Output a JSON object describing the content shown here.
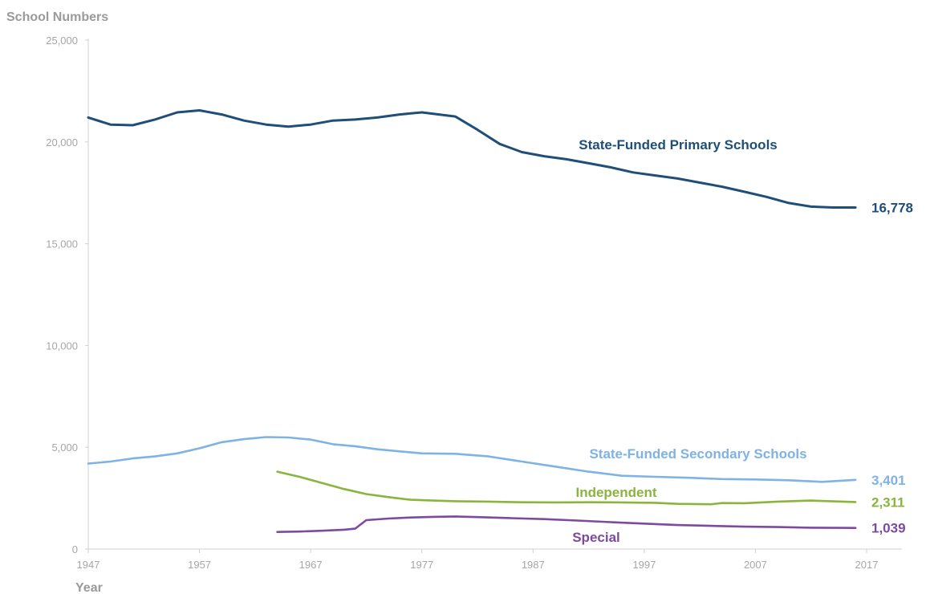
{
  "chart_data": {
    "type": "line",
    "title": "",
    "ylabel": "School Numbers",
    "xlabel": "Year",
    "xlim": [
      1947,
      2017
    ],
    "ylim": [
      0,
      25000
    ],
    "x_ticks": [
      "1947",
      "1957",
      "1967",
      "1977",
      "1987",
      "1997",
      "2007",
      "2017"
    ],
    "y_ticks": [
      "0",
      "5,000",
      "10,000",
      "15,000",
      "20,000",
      "25,000"
    ],
    "grid": false,
    "legend": "none (direct labels)",
    "series": [
      {
        "name": "State-Funded Primary Schools",
        "color": "#1f4e79",
        "end_label": "16,778",
        "points": [
          [
            1947,
            21200
          ],
          [
            1949,
            20850
          ],
          [
            1951,
            20820
          ],
          [
            1953,
            21100
          ],
          [
            1955,
            21450
          ],
          [
            1957,
            21550
          ],
          [
            1959,
            21350
          ],
          [
            1961,
            21050
          ],
          [
            1963,
            20850
          ],
          [
            1965,
            20750
          ],
          [
            1967,
            20850
          ],
          [
            1969,
            21050
          ],
          [
            1971,
            21100
          ],
          [
            1973,
            21200
          ],
          [
            1975,
            21350
          ],
          [
            1977,
            21450
          ],
          [
            1980,
            21250
          ],
          [
            1982,
            20600
          ],
          [
            1984,
            19900
          ],
          [
            1986,
            19500
          ],
          [
            1988,
            19300
          ],
          [
            1990,
            19150
          ],
          [
            1992,
            18950
          ],
          [
            1994,
            18750
          ],
          [
            1996,
            18500
          ],
          [
            1998,
            18350
          ],
          [
            2000,
            18200
          ],
          [
            2002,
            18000
          ],
          [
            2004,
            17800
          ],
          [
            2006,
            17550
          ],
          [
            2008,
            17300
          ],
          [
            2010,
            17000
          ],
          [
            2012,
            16820
          ],
          [
            2014,
            16778
          ],
          [
            2016,
            16778
          ]
        ]
      },
      {
        "name": "State-Funded Secondary Schools",
        "color": "#7fb2e5",
        "end_label": "3,401",
        "points": [
          [
            1947,
            4200
          ],
          [
            1949,
            4300
          ],
          [
            1951,
            4450
          ],
          [
            1953,
            4550
          ],
          [
            1955,
            4700
          ],
          [
            1957,
            4950
          ],
          [
            1959,
            5250
          ],
          [
            1961,
            5400
          ],
          [
            1963,
            5500
          ],
          [
            1965,
            5480
          ],
          [
            1967,
            5380
          ],
          [
            1969,
            5150
          ],
          [
            1971,
            5050
          ],
          [
            1973,
            4900
          ],
          [
            1975,
            4800
          ],
          [
            1977,
            4700
          ],
          [
            1980,
            4680
          ],
          [
            1983,
            4550
          ],
          [
            1986,
            4300
          ],
          [
            1989,
            4050
          ],
          [
            1992,
            3800
          ],
          [
            1995,
            3600
          ],
          [
            1998,
            3550
          ],
          [
            2001,
            3500
          ],
          [
            2004,
            3440
          ],
          [
            2007,
            3420
          ],
          [
            2010,
            3380
          ],
          [
            2013,
            3300
          ],
          [
            2016,
            3401
          ]
        ]
      },
      {
        "name": "Independent",
        "color": "#8ab53d",
        "end_label": "2,311",
        "points": [
          [
            1964,
            3800
          ],
          [
            1966,
            3550
          ],
          [
            1968,
            3250
          ],
          [
            1970,
            2950
          ],
          [
            1972,
            2700
          ],
          [
            1974,
            2550
          ],
          [
            1976,
            2420
          ],
          [
            1978,
            2380
          ],
          [
            1980,
            2350
          ],
          [
            1983,
            2330
          ],
          [
            1986,
            2300
          ],
          [
            1989,
            2290
          ],
          [
            1992,
            2300
          ],
          [
            1995,
            2290
          ],
          [
            1998,
            2270
          ],
          [
            2000,
            2220
          ],
          [
            2003,
            2200
          ],
          [
            2004,
            2260
          ],
          [
            2006,
            2250
          ],
          [
            2009,
            2330
          ],
          [
            2012,
            2380
          ],
          [
            2016,
            2311
          ]
        ]
      },
      {
        "name": "Special",
        "color": "#7d4aa0",
        "end_label": "1,039",
        "points": [
          [
            1964,
            840
          ],
          [
            1966,
            860
          ],
          [
            1968,
            900
          ],
          [
            1970,
            950
          ],
          [
            1971,
            1000
          ],
          [
            1972,
            1420
          ],
          [
            1974,
            1500
          ],
          [
            1976,
            1550
          ],
          [
            1978,
            1580
          ],
          [
            1980,
            1600
          ],
          [
            1982,
            1570
          ],
          [
            1985,
            1520
          ],
          [
            1988,
            1470
          ],
          [
            1991,
            1400
          ],
          [
            1994,
            1320
          ],
          [
            1997,
            1250
          ],
          [
            2000,
            1180
          ],
          [
            2003,
            1140
          ],
          [
            2006,
            1100
          ],
          [
            2009,
            1080
          ],
          [
            2012,
            1050
          ],
          [
            2016,
            1039
          ]
        ]
      }
    ]
  }
}
